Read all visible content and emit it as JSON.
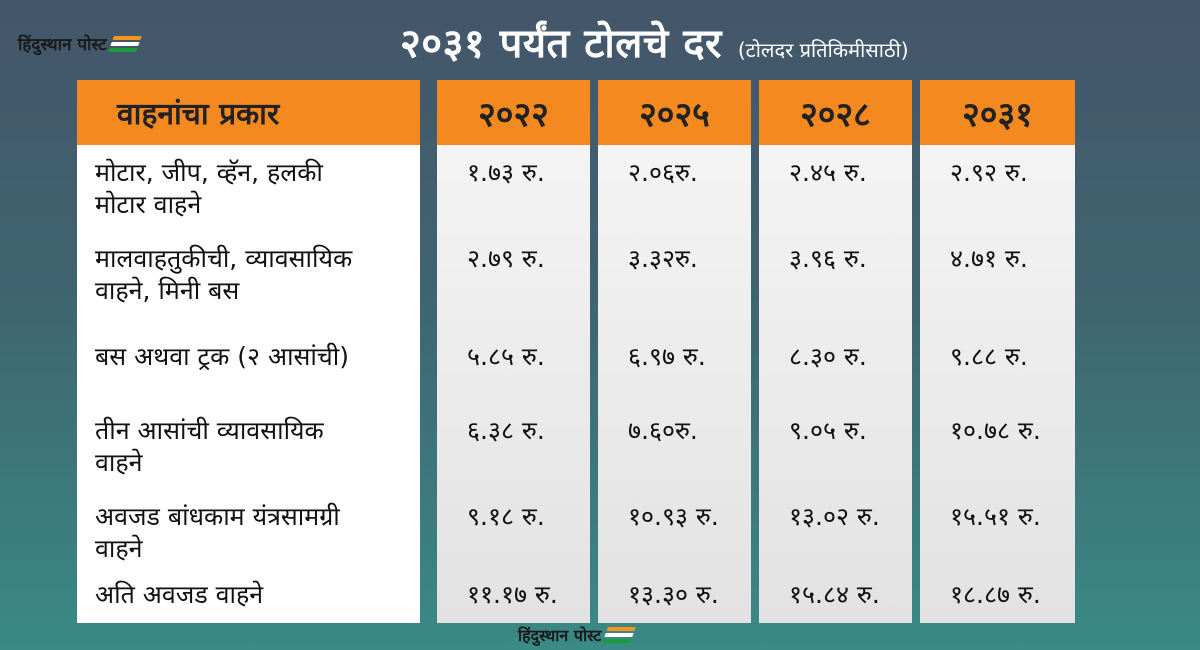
{
  "brand": {
    "logo_text": "हिंदुस्थान पोस्ट"
  },
  "header": {
    "title": "२०३१ पर्यंत टोलचे दर",
    "subtitle": "(टोलदर प्रतिकिमीसाठी)"
  },
  "table": {
    "type_header": "वाहनांचा प्रकार",
    "years": [
      "२०२२",
      "२०२५",
      "२०२८",
      "२०३१"
    ],
    "rows": [
      {
        "type_line1": "मोटार, जीप, व्हॅन, हलकी",
        "type_line2": "मोटार वाहने",
        "values": [
          "१.७३ रु.",
          "२.०६रु.",
          "२.४५ रु.",
          "२.९२ रु."
        ]
      },
      {
        "type_line1": "मालवाहतुकीची, व्यावसायिक",
        "type_line2": "वाहने, मिनी बस",
        "values": [
          "२.७९ रु.",
          "३.३२रु.",
          "३.९६ रु.",
          "४.७१ रु."
        ]
      },
      {
        "type_line1": "बस अथवा ट्रक (२ आसांची)",
        "type_line2": "",
        "values": [
          "५.८५ रु.",
          "६.९७ रु.",
          "८.३० रु.",
          "९.८८ रु."
        ]
      },
      {
        "type_line1": "तीन आसांची व्यावसायिक",
        "type_line2": "वाहने",
        "values": [
          "६.३८ रु.",
          "७.६०रु.",
          "९.०५ रु.",
          "१०.७८ रु."
        ]
      },
      {
        "type_line1": "अवजड बांधकाम यंत्रसामग्री",
        "type_line2": "वाहने",
        "values": [
          "९.१८ रु.",
          "१०.९३ रु.",
          "१३.०२ रु.",
          "१५.५१ रु."
        ]
      },
      {
        "type_line1": "अति अवजड वाहने",
        "type_line2": "",
        "values": [
          "११.१७ रु.",
          "१३.३० रु.",
          "१५.८४ रु.",
          "१८.८७ रु."
        ]
      }
    ]
  },
  "colors": {
    "header_bg": "#f48a1f",
    "background_top": "#44566a",
    "background_bottom": "#3a8a86"
  }
}
